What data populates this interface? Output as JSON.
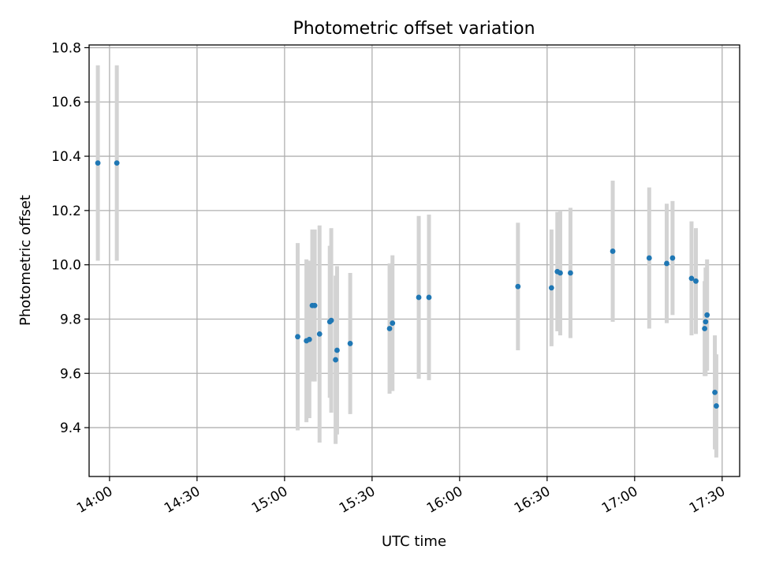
{
  "chart_data": {
    "type": "scatter",
    "title": "Photometric offset variation",
    "xlabel": "UTC time",
    "ylabel": "Photometric offset",
    "xlim": [
      "13:53",
      "17:36"
    ],
    "ylim": [
      9.22,
      10.81
    ],
    "x_ticks": [
      "14:00",
      "14:30",
      "15:00",
      "15:30",
      "16:00",
      "16:30",
      "17:00",
      "17:30"
    ],
    "y_ticks": [
      "9.4",
      "9.6",
      "9.8",
      "10.0",
      "10.2",
      "10.4",
      "10.6",
      "10.8"
    ],
    "grid": true,
    "error_bar_color": "#d3d3d3",
    "marker_color": "#1f77b4",
    "points": [
      {
        "t": "13:56:00",
        "y": 10.375,
        "err": 0.36
      },
      {
        "t": "14:02:30",
        "y": 10.375,
        "err": 0.36
      },
      {
        "t": "15:04:30",
        "y": 9.735,
        "err": 0.345
      },
      {
        "t": "15:07:30",
        "y": 9.72,
        "err": 0.3
      },
      {
        "t": "15:08:30",
        "y": 9.725,
        "err": 0.29
      },
      {
        "t": "15:09:30",
        "y": 9.85,
        "err": 0.28
      },
      {
        "t": "15:10:20",
        "y": 9.85,
        "err": 0.28
      },
      {
        "t": "15:12:00",
        "y": 9.745,
        "err": 0.4
      },
      {
        "t": "15:15:30",
        "y": 9.79,
        "err": 0.28
      },
      {
        "t": "15:16:00",
        "y": 9.795,
        "err": 0.34
      },
      {
        "t": "15:17:30",
        "y": 9.65,
        "err": 0.31
      },
      {
        "t": "15:18:00",
        "y": 9.685,
        "err": 0.31
      },
      {
        "t": "15:22:30",
        "y": 9.71,
        "err": 0.26
      },
      {
        "t": "15:36:00",
        "y": 9.765,
        "err": 0.24
      },
      {
        "t": "15:37:00",
        "y": 9.785,
        "err": 0.25
      },
      {
        "t": "15:46:00",
        "y": 9.88,
        "err": 0.3
      },
      {
        "t": "15:49:30",
        "y": 9.88,
        "err": 0.305
      },
      {
        "t": "16:20:00",
        "y": 9.92,
        "err": 0.235
      },
      {
        "t": "16:31:30",
        "y": 9.915,
        "err": 0.215
      },
      {
        "t": "16:33:30",
        "y": 9.975,
        "err": 0.22
      },
      {
        "t": "16:34:30",
        "y": 9.97,
        "err": 0.23
      },
      {
        "t": "16:38:00",
        "y": 9.97,
        "err": 0.24
      },
      {
        "t": "16:52:30",
        "y": 10.05,
        "err": 0.26
      },
      {
        "t": "17:05:00",
        "y": 10.025,
        "err": 0.26
      },
      {
        "t": "17:11:00",
        "y": 10.005,
        "err": 0.22
      },
      {
        "t": "17:13:00",
        "y": 10.025,
        "err": 0.21
      },
      {
        "t": "17:19:30",
        "y": 9.95,
        "err": 0.21
      },
      {
        "t": "17:21:00",
        "y": 9.94,
        "err": 0.195
      },
      {
        "t": "17:24:00",
        "y": 9.765,
        "err": 0.175
      },
      {
        "t": "17:24:20",
        "y": 9.79,
        "err": 0.2
      },
      {
        "t": "17:24:50",
        "y": 9.815,
        "err": 0.205
      },
      {
        "t": "17:27:30",
        "y": 9.53,
        "err": 0.21
      },
      {
        "t": "17:28:00",
        "y": 9.48,
        "err": 0.19
      }
    ]
  }
}
